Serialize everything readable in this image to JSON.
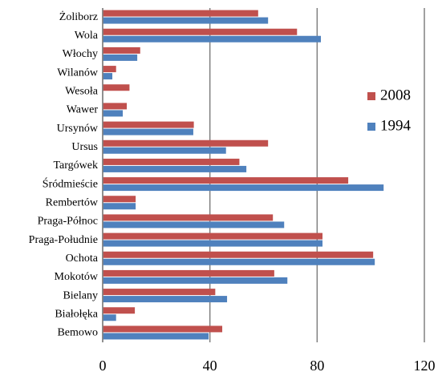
{
  "chart_data": {
    "type": "bar",
    "orientation": "horizontal",
    "categories": [
      "Żoliborz",
      "Wola",
      "Włochy",
      "Wilanów",
      "Wesoła",
      "Wawer",
      "Ursynów",
      "Ursus",
      "Targówek",
      "Śródmieście",
      "Rembertów",
      "Praga-Północ",
      "Praga-Południe",
      "Ochota",
      "Mokotów",
      "Bielany",
      "Białołęka",
      "Bemowo"
    ],
    "series": [
      {
        "name": "2008",
        "color": "#c0504d",
        "values": [
          58,
          72.5,
          14,
          5,
          10,
          9,
          34,
          61.7,
          51,
          91.6,
          12.3,
          63.5,
          82,
          100.9,
          64,
          42,
          12,
          44.6
        ]
      },
      {
        "name": "1994",
        "color": "#4f81bd",
        "values": [
          61.7,
          81.4,
          12.9,
          3.6,
          0,
          7.5,
          33.8,
          46,
          53.6,
          104.8,
          12.3,
          67.7,
          82,
          101.5,
          68.9,
          46.4,
          5,
          39.5
        ]
      }
    ],
    "xlim": [
      0,
      120
    ],
    "xticks": [
      0,
      40,
      80,
      120
    ],
    "grid": true,
    "legend": "right"
  }
}
